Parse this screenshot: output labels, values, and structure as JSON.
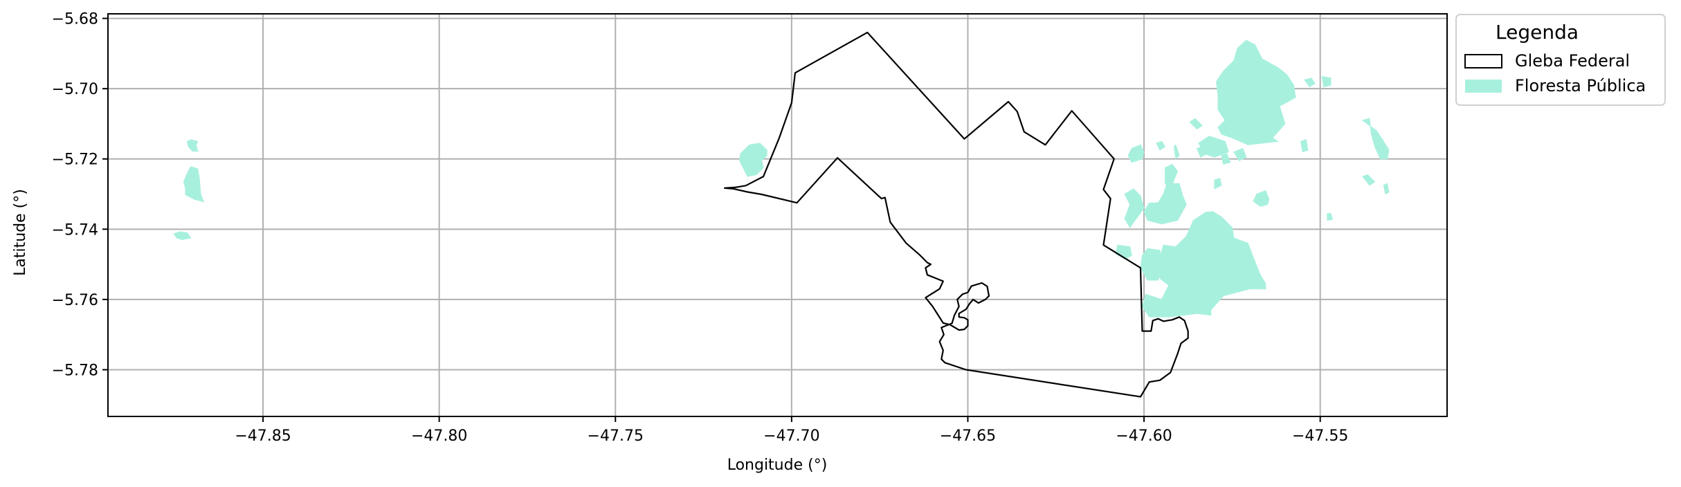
{
  "chart_data": {
    "type": "map",
    "xlabel": "Longitude (°)",
    "ylabel": "Latitude (°)",
    "xlim": [
      -47.894,
      -47.514
    ],
    "ylim": [
      -5.7933,
      -5.6787
    ],
    "x_ticks": [
      -47.85,
      -47.8,
      -47.75,
      -47.7,
      -47.65,
      -47.6,
      -47.55
    ],
    "x_tick_labels": [
      "−47.85",
      "−47.80",
      "−47.75",
      "−47.70",
      "−47.65",
      "−47.60",
      "−47.55"
    ],
    "y_ticks": [
      -5.68,
      -5.7,
      -5.72,
      -5.74,
      -5.76,
      -5.78
    ],
    "y_tick_labels": [
      "−5.68",
      "−5.70",
      "−5.72",
      "−5.74",
      "−5.76",
      "−5.78"
    ],
    "grid": true,
    "legend": {
      "title": "Legenda",
      "placement": "outside-top-right",
      "entries": [
        {
          "label": "Gleba Federal",
          "kind": "outline",
          "edge_color": "#000000",
          "fill_color": "none"
        },
        {
          "label": "Floresta Pública",
          "kind": "fill",
          "edge_color": "none",
          "fill_color": "#a8f0de"
        }
      ]
    },
    "colors": {
      "gleba_edge": "#000000",
      "floresta_fill": "#a8f0de",
      "grid": "#b0b0b0"
    },
    "gleba_federal": [
      [
        -47.719,
        -5.7283
      ],
      [
        -47.716,
        -5.7281
      ],
      [
        -47.713,
        -5.7276
      ],
      [
        -47.708,
        -5.725
      ],
      [
        -47.7035,
        -5.714
      ],
      [
        -47.7,
        -5.704
      ],
      [
        -47.699,
        -5.6955
      ],
      [
        -47.6785,
        -5.684
      ],
      [
        -47.651,
        -5.7143
      ],
      [
        -47.6385,
        -5.7037
      ],
      [
        -47.636,
        -5.7065
      ],
      [
        -47.634,
        -5.7123
      ],
      [
        -47.628,
        -5.716
      ],
      [
        -47.6205,
        -5.7063
      ],
      [
        -47.6085,
        -5.72
      ],
      [
        -47.6115,
        -5.7287
      ],
      [
        -47.6095,
        -5.7313
      ],
      [
        -47.6115,
        -5.7445
      ],
      [
        -47.601,
        -5.751
      ],
      [
        -47.6005,
        -5.769
      ],
      [
        -47.598,
        -5.769
      ],
      [
        -47.5975,
        -5.766
      ],
      [
        -47.596,
        -5.7655
      ],
      [
        -47.5945,
        -5.7662
      ],
      [
        -47.592,
        -5.7658
      ],
      [
        -47.59,
        -5.765
      ],
      [
        -47.5885,
        -5.766
      ],
      [
        -47.5875,
        -5.769
      ],
      [
        -47.5875,
        -5.771
      ],
      [
        -47.5895,
        -5.7725
      ],
      [
        -47.5905,
        -5.7755
      ],
      [
        -47.5925,
        -5.7808
      ],
      [
        -47.5955,
        -5.783
      ],
      [
        -47.5985,
        -5.7835
      ],
      [
        -47.601,
        -5.7877
      ],
      [
        -47.6505,
        -5.78
      ],
      [
        -47.6565,
        -5.778
      ],
      [
        -47.6575,
        -5.777
      ],
      [
        -47.657,
        -5.7745
      ],
      [
        -47.658,
        -5.772
      ],
      [
        -47.6568,
        -5.77
      ],
      [
        -47.6575,
        -5.768
      ],
      [
        -47.6545,
        -5.7668
      ],
      [
        -47.6538,
        -5.7645
      ],
      [
        -47.6525,
        -5.762
      ],
      [
        -47.653,
        -5.76
      ],
      [
        -47.6515,
        -5.7585
      ],
      [
        -47.65,
        -5.758
      ],
      [
        -47.649,
        -5.7562
      ],
      [
        -47.646,
        -5.7553
      ],
      [
        -47.6445,
        -5.7563
      ],
      [
        -47.644,
        -5.759
      ],
      [
        -47.645,
        -5.76
      ],
      [
        -47.647,
        -5.761
      ],
      [
        -47.6485,
        -5.76
      ],
      [
        -47.6495,
        -5.7612
      ],
      [
        -47.6505,
        -5.7628
      ],
      [
        -47.6525,
        -5.764
      ],
      [
        -47.6525,
        -5.765
      ],
      [
        -47.651,
        -5.7652
      ],
      [
        -47.65,
        -5.7658
      ],
      [
        -47.65,
        -5.7675
      ],
      [
        -47.651,
        -5.7685
      ],
      [
        -47.6525,
        -5.7687
      ],
      [
        -47.655,
        -5.7672
      ],
      [
        -47.657,
        -5.7667
      ],
      [
        -47.66,
        -5.762
      ],
      [
        -47.662,
        -5.7595
      ],
      [
        -47.658,
        -5.757
      ],
      [
        -47.657,
        -5.7548
      ],
      [
        -47.6615,
        -5.753
      ],
      [
        -47.662,
        -5.751
      ],
      [
        -47.6605,
        -5.75
      ],
      [
        -47.6615,
        -5.7495
      ],
      [
        -47.663,
        -5.748
      ],
      [
        -47.664,
        -5.747
      ],
      [
        -47.6675,
        -5.744
      ],
      [
        -47.672,
        -5.738
      ],
      [
        -47.6735,
        -5.731
      ],
      [
        -47.6745,
        -5.7313
      ],
      [
        -47.687,
        -5.7197
      ],
      [
        -47.6985,
        -5.7325
      ],
      [
        -47.7085,
        -5.7301
      ],
      [
        -47.7125,
        -5.7294
      ],
      [
        -47.7165,
        -5.7285
      ],
      [
        -47.719,
        -5.7283
      ]
    ],
    "floresta_publica": [
      [
        [
          -47.8705,
          -5.7145
        ],
        [
          -47.8685,
          -5.715
        ],
        [
          -47.869,
          -5.716
        ],
        [
          -47.8685,
          -5.7178
        ],
        [
          -47.87,
          -5.7178
        ],
        [
          -47.8712,
          -5.7165
        ],
        [
          -47.8715,
          -5.715
        ]
      ],
      [
        [
          -47.8705,
          -5.7222
        ],
        [
          -47.8685,
          -5.7228
        ],
        [
          -47.868,
          -5.726
        ],
        [
          -47.8677,
          -5.73
        ],
        [
          -47.8668,
          -5.7322
        ],
        [
          -47.8695,
          -5.7315
        ],
        [
          -47.872,
          -5.7302
        ],
        [
          -47.872,
          -5.7285
        ],
        [
          -47.8725,
          -5.7265
        ],
        [
          -47.8715,
          -5.724
        ]
      ],
      [
        [
          -47.8753,
          -5.7413
        ],
        [
          -47.8735,
          -5.7407
        ],
        [
          -47.8715,
          -5.741
        ],
        [
          -47.8705,
          -5.7425
        ],
        [
          -47.873,
          -5.743
        ],
        [
          -47.8745,
          -5.7425
        ]
      ],
      [
        [
          -47.7145,
          -5.7185
        ],
        [
          -47.712,
          -5.716
        ],
        [
          -47.709,
          -5.7155
        ],
        [
          -47.707,
          -5.7175
        ],
        [
          -47.707,
          -5.719
        ],
        [
          -47.7085,
          -5.7205
        ],
        [
          -47.708,
          -5.7225
        ],
        [
          -47.71,
          -5.7245
        ],
        [
          -47.7125,
          -5.725
        ],
        [
          -47.7135,
          -5.723
        ],
        [
          -47.7148,
          -5.7205
        ]
      ],
      [
        [
          -47.6035,
          -5.717
        ],
        [
          -47.601,
          -5.716
        ],
        [
          -47.6,
          -5.718
        ],
        [
          -47.6005,
          -5.72
        ],
        [
          -47.6035,
          -5.721
        ],
        [
          -47.6045,
          -5.719
        ]
      ],
      [
        [
          -47.5965,
          -5.7155
        ],
        [
          -47.595,
          -5.715
        ],
        [
          -47.594,
          -5.7165
        ],
        [
          -47.5955,
          -5.7175
        ]
      ],
      [
        [
          -47.594,
          -5.7225
        ],
        [
          -47.592,
          -5.7215
        ],
        [
          -47.5905,
          -5.7235
        ],
        [
          -47.5925,
          -5.7285
        ],
        [
          -47.594,
          -5.727
        ]
      ],
      [
        [
          -47.6055,
          -5.73
        ],
        [
          -47.603,
          -5.7285
        ],
        [
          -47.601,
          -5.7305
        ],
        [
          -47.6,
          -5.734
        ],
        [
          -47.604,
          -5.7395
        ],
        [
          -47.6055,
          -5.737
        ],
        [
          -47.604,
          -5.733
        ]
      ],
      [
        [
          -47.5935,
          -5.727
        ],
        [
          -47.59,
          -5.727
        ],
        [
          -47.589,
          -5.7305
        ],
        [
          -47.588,
          -5.733
        ],
        [
          -47.5905,
          -5.7375
        ],
        [
          -47.595,
          -5.7385
        ],
        [
          -47.599,
          -5.7375
        ],
        [
          -47.6,
          -5.735
        ],
        [
          -47.5985,
          -5.7325
        ],
        [
          -47.596,
          -5.7325
        ],
        [
          -47.5945,
          -5.73
        ]
      ],
      [
        [
          -47.58,
          -5.726
        ],
        [
          -47.5785,
          -5.7255
        ],
        [
          -47.578,
          -5.7275
        ],
        [
          -47.58,
          -5.7285
        ]
      ],
      [
        [
          -47.585,
          -5.717
        ],
        [
          -47.583,
          -5.7165
        ],
        [
          -47.582,
          -5.7185
        ],
        [
          -47.584,
          -5.7195
        ]
      ],
      [
        [
          -47.5915,
          -5.7165
        ],
        [
          -47.591,
          -5.716
        ],
        [
          -47.59,
          -5.719
        ],
        [
          -47.591,
          -5.72
        ]
      ],
      [
        [
          -47.568,
          -5.73
        ],
        [
          -47.5655,
          -5.729
        ],
        [
          -47.5645,
          -5.7315
        ],
        [
          -47.565,
          -5.733
        ],
        [
          -47.567,
          -5.7335
        ],
        [
          -47.569,
          -5.732
        ]
      ],
      [
        [
          -47.571,
          -5.6862
        ],
        [
          -47.5685,
          -5.6875
        ],
        [
          -47.5665,
          -5.6915
        ],
        [
          -47.562,
          -5.694
        ],
        [
          -47.5595,
          -5.696
        ],
        [
          -47.5575,
          -5.699
        ],
        [
          -47.557,
          -5.7025
        ],
        [
          -47.5615,
          -5.705
        ],
        [
          -47.56,
          -5.71
        ],
        [
          -47.5635,
          -5.714
        ],
        [
          -47.562,
          -5.715
        ],
        [
          -47.5705,
          -5.716
        ],
        [
          -47.575,
          -5.714
        ],
        [
          -47.578,
          -5.713
        ],
        [
          -47.579,
          -5.711
        ],
        [
          -47.577,
          -5.709
        ],
        [
          -47.579,
          -5.706
        ],
        [
          -47.579,
          -5.702
        ],
        [
          -47.5795,
          -5.698
        ],
        [
          -47.5775,
          -5.695
        ],
        [
          -47.5745,
          -5.692
        ],
        [
          -47.5735,
          -5.6885
        ]
      ],
      [
        [
          -47.5815,
          -5.7135
        ],
        [
          -47.577,
          -5.715
        ],
        [
          -47.576,
          -5.718
        ],
        [
          -47.58,
          -5.7195
        ],
        [
          -47.583,
          -5.7185
        ],
        [
          -47.5845,
          -5.7155
        ]
      ],
      [
        [
          -47.578,
          -5.719
        ],
        [
          -47.5765,
          -5.7185
        ],
        [
          -47.5755,
          -5.721
        ],
        [
          -47.5775,
          -5.7215
        ]
      ],
      [
        [
          -47.5745,
          -5.718
        ],
        [
          -47.572,
          -5.717
        ],
        [
          -47.571,
          -5.7195
        ],
        [
          -47.573,
          -5.7205
        ]
      ],
      [
        [
          -47.587,
          -5.7095
        ],
        [
          -47.5855,
          -5.7085
        ],
        [
          -47.5835,
          -5.7105
        ],
        [
          -47.585,
          -5.7115
        ]
      ],
      [
        [
          -47.5545,
          -5.6975
        ],
        [
          -47.5525,
          -5.697
        ],
        [
          -47.5515,
          -5.6985
        ],
        [
          -47.553,
          -5.6995
        ]
      ],
      [
        [
          -47.5495,
          -5.6965
        ],
        [
          -47.547,
          -5.697
        ],
        [
          -47.547,
          -5.699
        ],
        [
          -47.549,
          -5.6995
        ]
      ],
      [
        [
          -47.538,
          -5.709
        ],
        [
          -47.536,
          -5.7085
        ],
        [
          -47.5355,
          -5.713
        ],
        [
          -47.5345,
          -5.7165
        ],
        [
          -47.533,
          -5.72
        ],
        [
          -47.531,
          -5.72
        ],
        [
          -47.5305,
          -5.7175
        ],
        [
          -47.532,
          -5.715
        ],
        [
          -47.534,
          -5.712
        ]
      ],
      [
        [
          -47.5555,
          -5.715
        ],
        [
          -47.554,
          -5.7145
        ],
        [
          -47.5535,
          -5.7175
        ],
        [
          -47.555,
          -5.718
        ]
      ],
      [
        [
          -47.538,
          -5.725
        ],
        [
          -47.5365,
          -5.7245
        ],
        [
          -47.5345,
          -5.7265
        ],
        [
          -47.536,
          -5.7275
        ]
      ],
      [
        [
          -47.532,
          -5.7275
        ],
        [
          -47.531,
          -5.727
        ],
        [
          -47.5305,
          -5.7295
        ],
        [
          -47.5315,
          -5.73
        ]
      ],
      [
        [
          -47.548,
          -5.7355
        ],
        [
          -47.547,
          -5.7355
        ],
        [
          -47.5465,
          -5.7372
        ],
        [
          -47.548,
          -5.7375
        ]
      ],
      [
        [
          -47.5825,
          -5.7352
        ],
        [
          -47.586,
          -5.7375
        ],
        [
          -47.588,
          -5.742
        ],
        [
          -47.591,
          -5.745
        ],
        [
          -47.5945,
          -5.7445
        ],
        [
          -47.596,
          -5.75
        ],
        [
          -47.5955,
          -5.754
        ],
        [
          -47.593,
          -5.756
        ],
        [
          -47.595,
          -5.76
        ],
        [
          -47.5995,
          -5.7585
        ],
        [
          -47.6005,
          -5.762
        ],
        [
          -47.5985,
          -5.765
        ],
        [
          -47.593,
          -5.765
        ],
        [
          -47.585,
          -5.764
        ],
        [
          -47.581,
          -5.7645
        ],
        [
          -47.581,
          -5.763
        ],
        [
          -47.5775,
          -5.759
        ],
        [
          -47.57,
          -5.757
        ],
        [
          -47.5655,
          -5.757
        ],
        [
          -47.5655,
          -5.7555
        ],
        [
          -47.567,
          -5.753
        ],
        [
          -47.569,
          -5.748
        ],
        [
          -47.5705,
          -5.744
        ],
        [
          -47.5745,
          -5.7425
        ],
        [
          -47.575,
          -5.7395
        ],
        [
          -47.578,
          -5.7365
        ],
        [
          -47.5805,
          -5.735
        ]
      ],
      [
        [
          -47.6075,
          -5.7445
        ],
        [
          -47.604,
          -5.745
        ],
        [
          -47.6035,
          -5.7475
        ],
        [
          -47.6055,
          -5.7485
        ],
        [
          -47.608,
          -5.747
        ]
      ],
      [
        [
          -47.599,
          -5.7455
        ],
        [
          -47.5955,
          -5.746
        ],
        [
          -47.595,
          -5.751
        ],
        [
          -47.596,
          -5.7545
        ],
        [
          -47.599,
          -5.7545
        ],
        [
          -47.601,
          -5.751
        ],
        [
          -47.6005,
          -5.7475
        ]
      ]
    ]
  }
}
